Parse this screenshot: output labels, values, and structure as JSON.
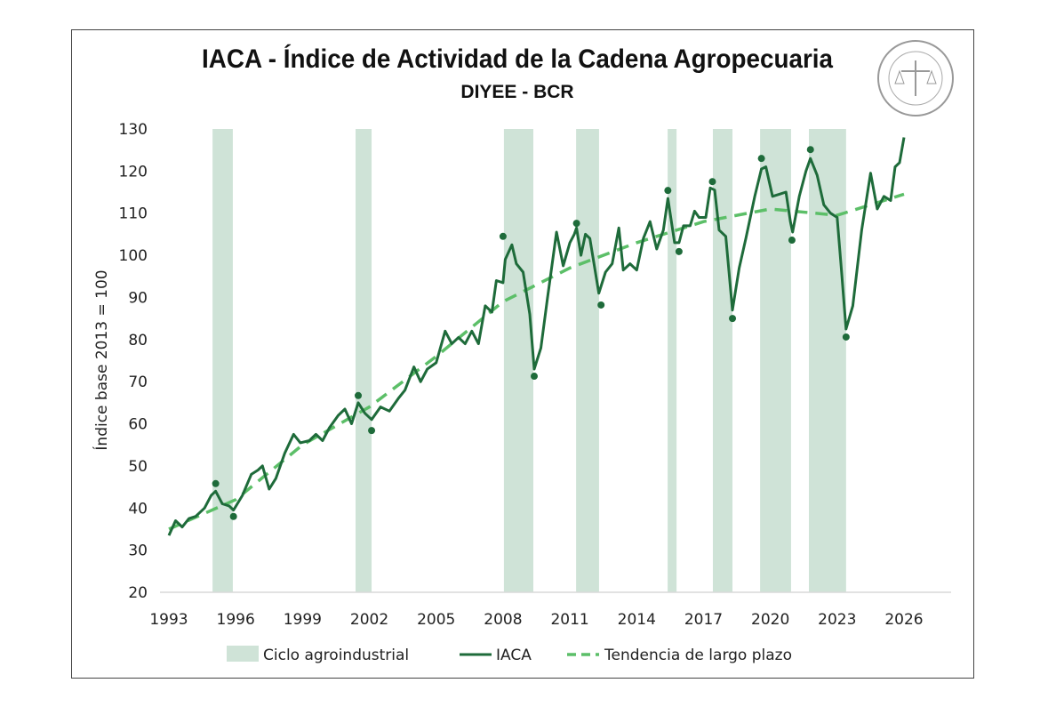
{
  "chart_data": {
    "type": "line",
    "title": "IACA - Índice de Actividad de la Cadena Agropecuaria",
    "subtitle": "DIYEE - BCR",
    "ylabel": "Índice base 2013 = 100",
    "xlabel": "",
    "ylim": [
      20,
      130
    ],
    "xlim": [
      1993,
      2026
    ],
    "yticks": [
      20,
      30,
      40,
      50,
      60,
      70,
      80,
      90,
      100,
      110,
      120,
      130
    ],
    "xticks": [
      1993,
      1996,
      1999,
      2002,
      2005,
      2008,
      2011,
      2014,
      2017,
      2020,
      2023,
      2026
    ],
    "grid": false,
    "legend_position": "bottom",
    "legend": [
      "Ciclo agroindustrial",
      "IACA",
      "Tendencia de largo plazo"
    ],
    "colors": {
      "iaca": "#1e6b3a",
      "trend": "#5cbf68",
      "cycle": "#cfe3d7",
      "markers": "#1e6b3a"
    },
    "cycles": [
      [
        1994.96,
        1995.87
      ],
      [
        2001.38,
        2002.1
      ],
      [
        2008.04,
        2009.36
      ],
      [
        2011.28,
        2012.31
      ],
      [
        2015.39,
        2015.79
      ],
      [
        2017.42,
        2018.3
      ],
      [
        2019.54,
        2020.93
      ],
      [
        2021.73,
        2023.4
      ]
    ],
    "turning_points": [
      [
        1995.1,
        45.8
      ],
      [
        1995.9,
        38
      ],
      [
        2001.5,
        66.7
      ],
      [
        2002.1,
        58.4
      ],
      [
        2008.0,
        104.5
      ],
      [
        2009.4,
        71.3
      ],
      [
        2011.3,
        107.6
      ],
      [
        2012.4,
        88.2
      ],
      [
        2015.4,
        115.4
      ],
      [
        2015.9,
        100.9
      ],
      [
        2017.4,
        117.5
      ],
      [
        2018.3,
        85
      ],
      [
        2019.6,
        123
      ],
      [
        2020.97,
        103.6
      ],
      [
        2021.8,
        125.1
      ],
      [
        2023.4,
        80.6
      ]
    ],
    "series": [
      {
        "name": "IACA",
        "x": [
          1993.0,
          1993.3,
          1993.6,
          1993.9,
          1994.2,
          1994.6,
          1994.9,
          1995.1,
          1995.4,
          1995.7,
          1995.9,
          1996.3,
          1996.7,
          1997.0,
          1997.2,
          1997.5,
          1997.8,
          1998.2,
          1998.6,
          1998.9,
          1999.3,
          1999.6,
          1999.9,
          2000.2,
          2000.6,
          2000.9,
          2001.2,
          2001.5,
          2001.8,
          2002.1,
          2002.5,
          2002.9,
          2003.3,
          2003.6,
          2004.0,
          2004.3,
          2004.6,
          2005.0,
          2005.4,
          2005.7,
          2006.0,
          2006.3,
          2006.6,
          2006.9,
          2007.2,
          2007.5,
          2007.7,
          2008.0,
          2008.1,
          2008.4,
          2008.6,
          2008.9,
          2009.2,
          2009.4,
          2009.7,
          2010.0,
          2010.4,
          2010.7,
          2011.0,
          2011.2,
          2011.3,
          2011.5,
          2011.7,
          2011.9,
          2012.3,
          2012.6,
          2012.9,
          2013.2,
          2013.4,
          2013.7,
          2014.0,
          2014.3,
          2014.6,
          2014.9,
          2015.2,
          2015.4,
          2015.7,
          2015.9,
          2016.1,
          2016.4,
          2016.6,
          2016.8,
          2017.1,
          2017.3,
          2017.5,
          2017.7,
          2018.0,
          2018.3,
          2018.6,
          2018.9,
          2019.3,
          2019.6,
          2019.8,
          2020.1,
          2020.4,
          2020.7,
          2020.9,
          2021.0,
          2021.3,
          2021.6,
          2021.8,
          2022.1,
          2022.4,
          2022.7,
          2023.0,
          2023.2,
          2023.4,
          2023.7,
          2024.1,
          2024.5,
          2024.8,
          2025.1,
          2025.4,
          2025.6,
          2025.8,
          2026.0
        ],
        "values": [
          33.5,
          37,
          35.5,
          37.5,
          38,
          40,
          43,
          44,
          41,
          40.5,
          39.5,
          43,
          48,
          49,
          50,
          44.5,
          47,
          53,
          57.5,
          55.5,
          56,
          57.5,
          56,
          59,
          62,
          63.5,
          60,
          65,
          62.5,
          61,
          64,
          63,
          66,
          68,
          73.5,
          70,
          73,
          74.5,
          82,
          79,
          80.5,
          79,
          82,
          79,
          88,
          86.5,
          94,
          93.5,
          99,
          102.5,
          98,
          96,
          86,
          73,
          78,
          90,
          105.5,
          97.5,
          103,
          105,
          106.5,
          100,
          105,
          104,
          91,
          96,
          98,
          106.5,
          96.5,
          98,
          96.5,
          104,
          108,
          101.5,
          106,
          113.5,
          103,
          103,
          107,
          107,
          110.5,
          109,
          109,
          116,
          115.5,
          106,
          104.5,
          87,
          97,
          104,
          114,
          120.5,
          121,
          114,
          114.5,
          115,
          108,
          105.5,
          114,
          120,
          123,
          119,
          112,
          110,
          109,
          96,
          82.5,
          88,
          106,
          119.5,
          111,
          114,
          113,
          121,
          122,
          128
        ]
      },
      {
        "name": "Tendencia de largo plazo",
        "x": [
          1993,
          1996,
          1999,
          2002,
          2005,
          2008,
          2011,
          2014,
          2017,
          2020,
          2023,
          2026
        ],
        "values": [
          35,
          42,
          55,
          64,
          76,
          89,
          97,
          103,
          108,
          111,
          109.5,
          114.5
        ]
      }
    ]
  },
  "logo": {
    "text": "BOLSA DE COMERCIO DE ROSARIO"
  }
}
